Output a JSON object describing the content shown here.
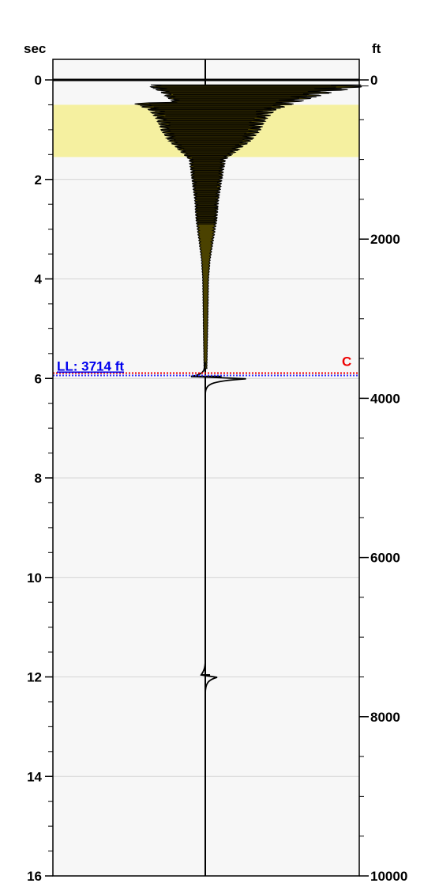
{
  "chart_data": {
    "type": "line",
    "left_axis": {
      "label": "sec",
      "range": [
        0,
        16
      ],
      "major_ticks": [
        0,
        2,
        4,
        6,
        8,
        10,
        12,
        14,
        16
      ],
      "tick_labels": [
        "0",
        "2",
        "4",
        "6",
        "8",
        "10",
        "12",
        "14",
        "16"
      ],
      "minor_step": 0.5
    },
    "right_axis": {
      "label": "ft",
      "range": [
        0,
        10000
      ],
      "major_ticks": [
        0,
        2000,
        4000,
        6000,
        8000,
        10000
      ],
      "tick_labels": [
        "0",
        "2000",
        "4000",
        "6000",
        "8000",
        "10000"
      ],
      "minor_step": 500
    },
    "grid": true,
    "highlight_band": {
      "from_sec": 0.5,
      "to_sec": 1.55,
      "color": "#f5f0a0"
    },
    "marker_line": {
      "label": "LL: 3714 ft",
      "at_sec": 5.94,
      "depth_ft": 3714,
      "right_label": "C",
      "label_color": "#0000ee",
      "right_label_color": "#ee0000"
    },
    "trace": {
      "color": "#000000",
      "fill_color": "#4b4200",
      "baseline_amplitude": 0,
      "envelope": [
        [
          0.1,
          1.0
        ],
        [
          0.25,
          0.75
        ],
        [
          0.45,
          0.55
        ],
        [
          0.6,
          0.42
        ],
        [
          0.8,
          0.36
        ],
        [
          1.0,
          0.33
        ],
        [
          1.2,
          0.28
        ],
        [
          1.4,
          0.2
        ],
        [
          1.6,
          0.12
        ],
        [
          2.0,
          0.1
        ],
        [
          2.4,
          0.08
        ],
        [
          2.8,
          0.07
        ],
        [
          3.2,
          0.05
        ],
        [
          3.6,
          0.03
        ],
        [
          4.0,
          0.02
        ],
        [
          5.0,
          0.015
        ],
        [
          5.8,
          0.01
        ]
      ],
      "events": [
        {
          "at_sec": 5.96,
          "amplitude": 0.24
        },
        {
          "at_sec": 11.96,
          "amplitude": 0.07
        }
      ]
    },
    "colors": {
      "plot_background": "#f7f7f7",
      "grid": "#d4d4d4",
      "frame": "#000000",
      "top_line": "#000000"
    }
  }
}
